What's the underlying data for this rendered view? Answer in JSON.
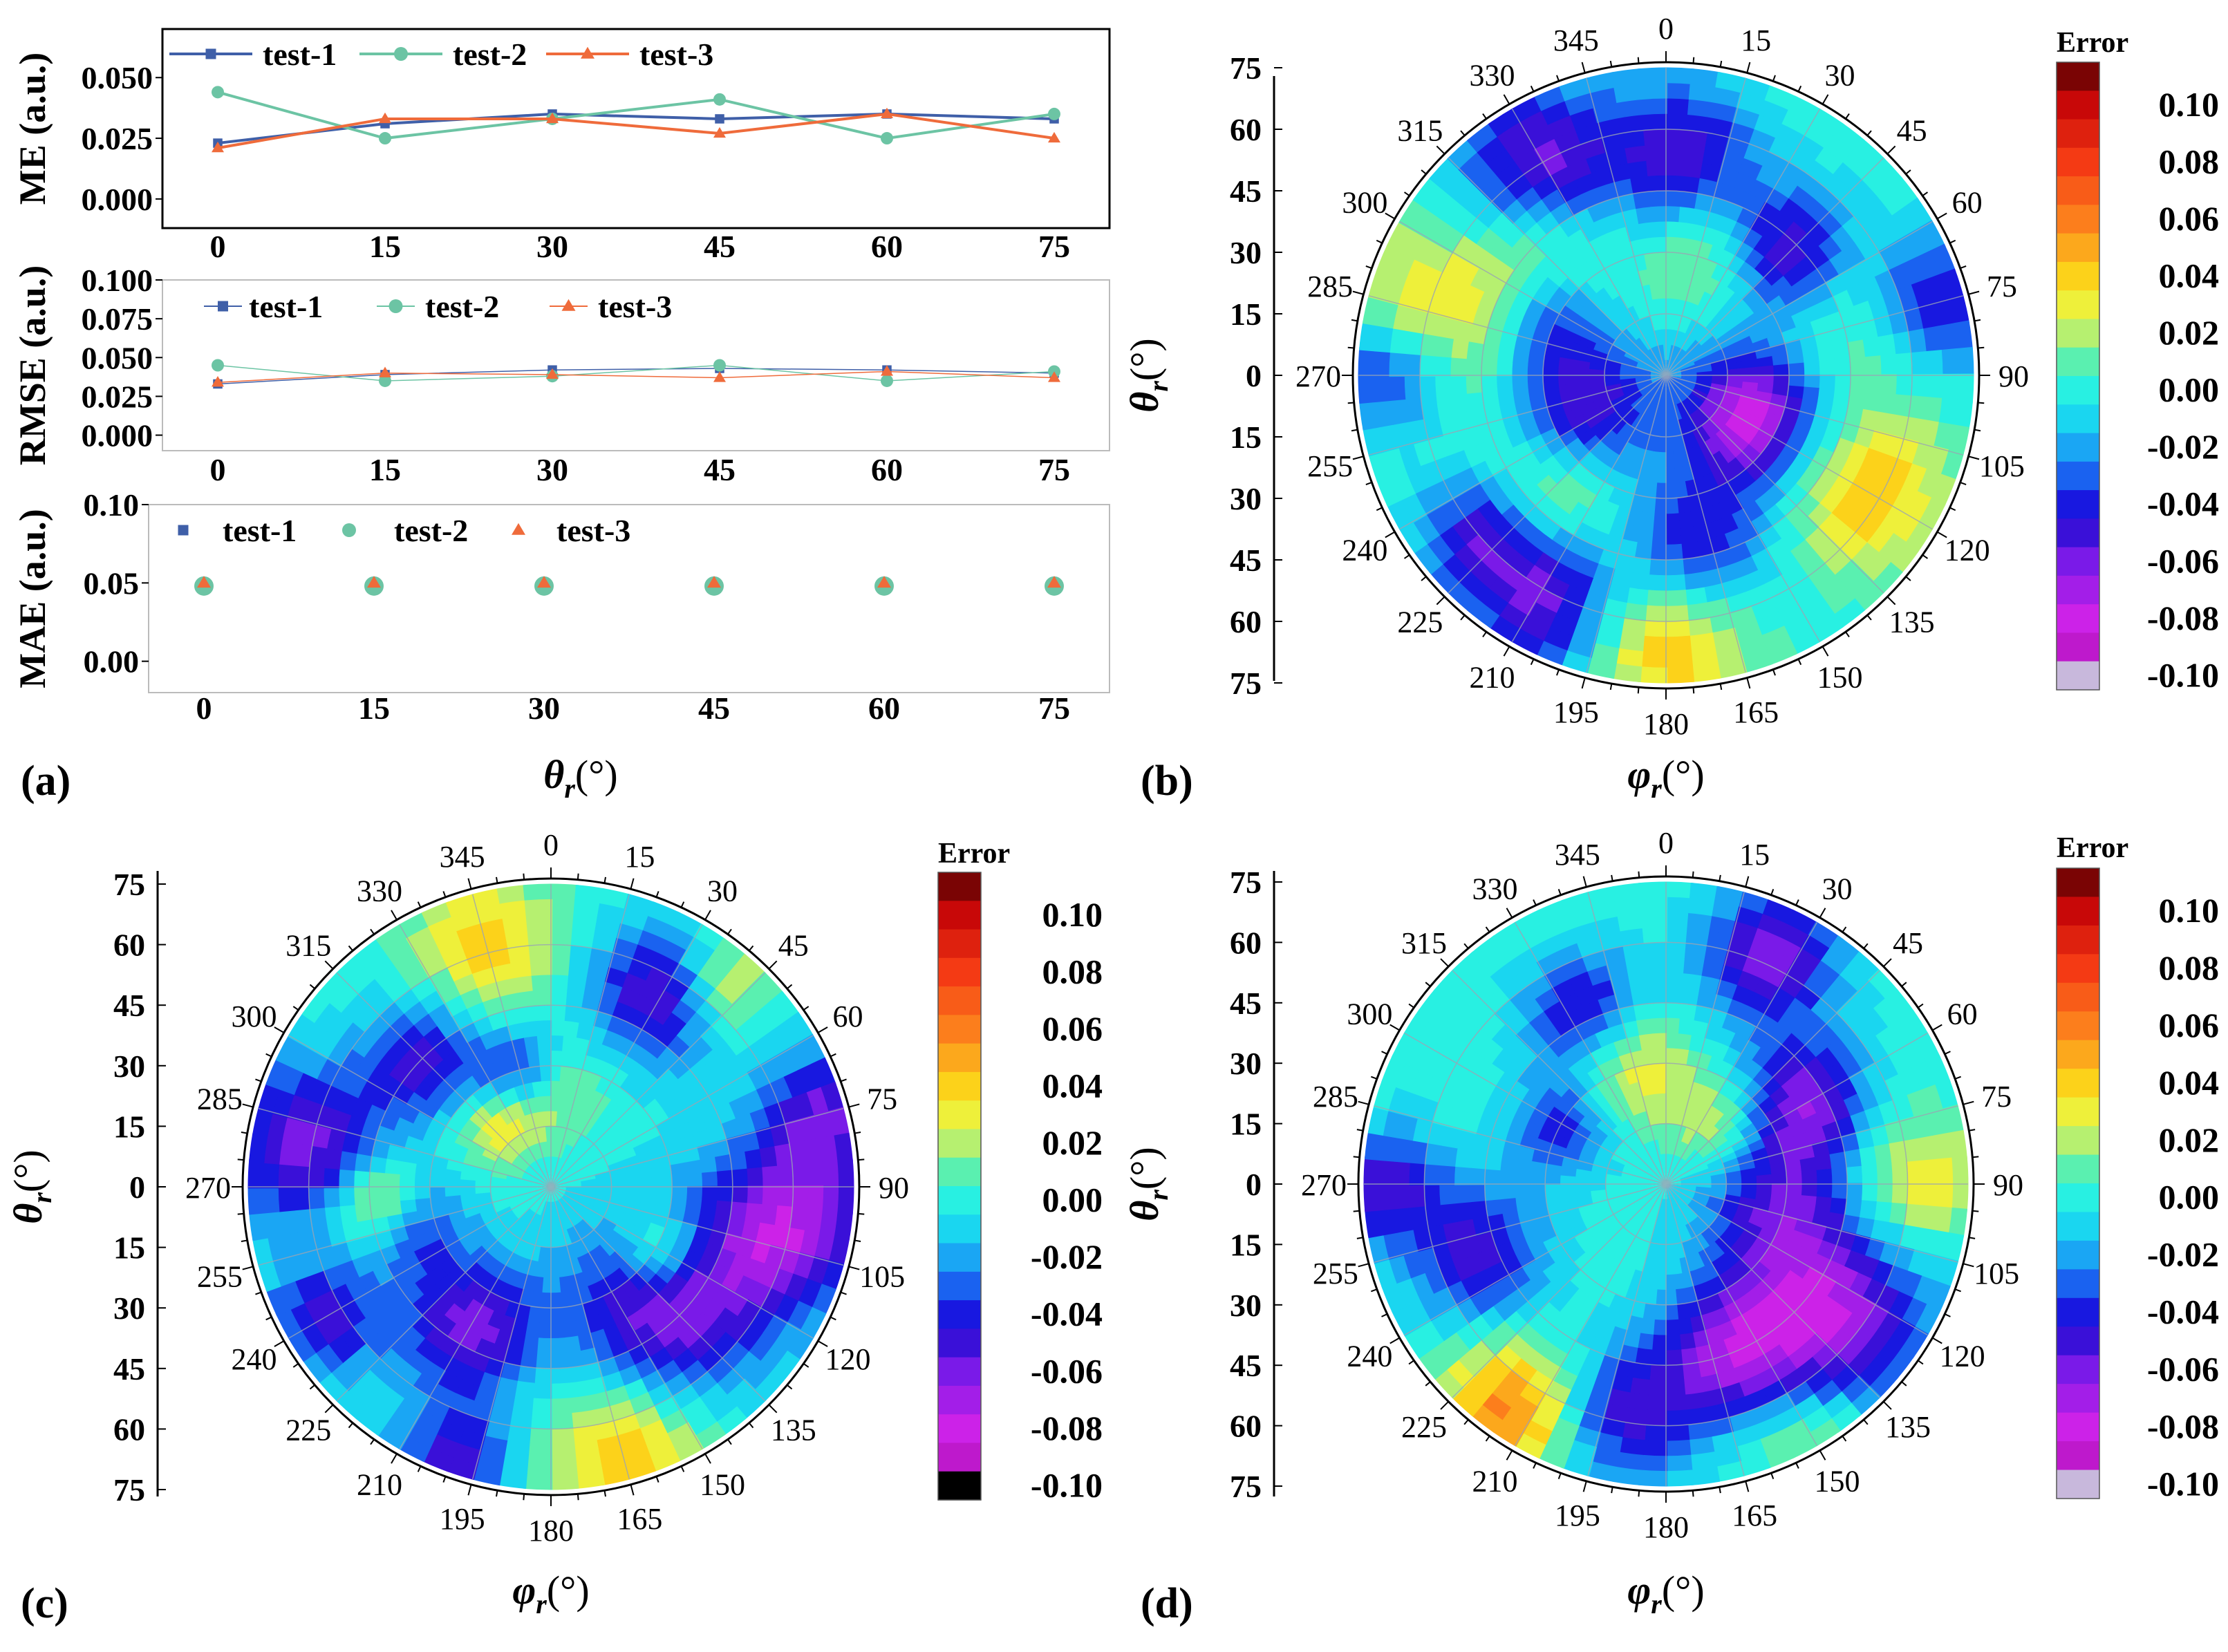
{
  "colors": {
    "test-1": "#3f5fa8",
    "test-2": "#6cc4a4",
    "test-3": "#ef6b3b",
    "grid": "#9aa5b4"
  },
  "panels": {
    "a": {
      "label": "(a)",
      "xlabel_main": "θ",
      "xlabel_sub": "r",
      "xlabel_unit": "(°)"
    },
    "b": {
      "label": "(b)"
    },
    "c": {
      "label": "(c)"
    },
    "d": {
      "label": "(d)"
    }
  },
  "polar_common": {
    "xlabel_main": "φ",
    "xlabel_sub": "r",
    "xlabel_unit": "(°)",
    "ylabel_main": "θ",
    "ylabel_sub": "r",
    "ylabel_unit": "(°)",
    "theta_ticks": [
      "75",
      "60",
      "45",
      "30",
      "15",
      "0",
      "15",
      "30",
      "45",
      "60",
      "75"
    ],
    "phi_ticks": [
      "0",
      "15",
      "30",
      "45",
      "60",
      "75",
      "90",
      "105",
      "120",
      "135",
      "150",
      "165",
      "180",
      "195",
      "210",
      "225",
      "240",
      "255",
      "270",
      "285",
      "300",
      "315",
      "330",
      "345"
    ],
    "colorbar_title": "Error",
    "colorbar_ticks": [
      "0.10",
      "0.08",
      "0.06",
      "0.04",
      "0.02",
      "0.00",
      "-0.02",
      "-0.04",
      "-0.06",
      "-0.08",
      "-0.10"
    ]
  },
  "chart_data": [
    {
      "panel": "a-top",
      "type": "line",
      "x": [
        0,
        15,
        30,
        45,
        60,
        75
      ],
      "xticklabels": [
        "0",
        "15",
        "30",
        "45",
        "60",
        "75"
      ],
      "ylabel": "ME (a.u.)",
      "ylim": [
        -0.012,
        0.07
      ],
      "yticks": [
        0.0,
        0.025,
        0.05
      ],
      "yticklabels": [
        "0.000",
        "0.025",
        "0.050"
      ],
      "series": [
        {
          "name": "test-1",
          "marker": "square",
          "values": [
            0.023,
            0.031,
            0.035,
            0.033,
            0.035,
            0.033
          ]
        },
        {
          "name": "test-2",
          "marker": "circle",
          "values": [
            0.044,
            0.025,
            0.033,
            0.041,
            0.025,
            0.035
          ]
        },
        {
          "name": "test-3",
          "marker": "triangle",
          "values": [
            0.021,
            0.033,
            0.033,
            0.027,
            0.035,
            0.025
          ]
        }
      ]
    },
    {
      "panel": "a-middle",
      "type": "scatter",
      "x": [
        0,
        15,
        30,
        45,
        60,
        75
      ],
      "xticklabels": [
        "0",
        "15",
        "30",
        "45",
        "60",
        "75"
      ],
      "ylabel": "RMSE (a.u.)",
      "ylim": [
        -0.01,
        0.1
      ],
      "yticks": [
        0.0,
        0.025,
        0.05,
        0.075,
        0.1
      ],
      "yticklabels": [
        "0.000",
        "0.025",
        "0.050",
        "0.075",
        "0.100"
      ],
      "series": [
        {
          "name": "test-1",
          "marker": "square",
          "values": [
            0.033,
            0.039,
            0.042,
            0.043,
            0.042,
            0.04
          ]
        },
        {
          "name": "test-2",
          "marker": "circle",
          "values": [
            0.045,
            0.035,
            0.038,
            0.045,
            0.035,
            0.041
          ]
        },
        {
          "name": "test-3",
          "marker": "triangle",
          "values": [
            0.034,
            0.04,
            0.039,
            0.037,
            0.041,
            0.037
          ]
        }
      ]
    },
    {
      "panel": "a-bottom",
      "type": "scatter",
      "x": [
        0,
        15,
        30,
        45,
        60,
        75
      ],
      "xticklabels": [
        "0",
        "15",
        "30",
        "45",
        "60",
        "75"
      ],
      "ylabel": "MAE (a.u.)",
      "ylim": [
        -0.02,
        0.1
      ],
      "yticks": [
        0.0,
        0.05,
        0.1
      ],
      "yticklabels": [
        "0.00",
        "0.05",
        "0.10"
      ],
      "series": [
        {
          "name": "test-1",
          "marker": "square",
          "values": [
            0.049,
            0.049,
            0.049,
            0.049,
            0.049,
            0.049
          ]
        },
        {
          "name": "test-2",
          "marker": "circle",
          "values": [
            0.048,
            0.048,
            0.048,
            0.048,
            0.048,
            0.048
          ]
        },
        {
          "name": "test-3",
          "marker": "triangle",
          "values": [
            0.05,
            0.05,
            0.05,
            0.05,
            0.05,
            0.05
          ]
        }
      ]
    },
    {
      "panel": "b",
      "type": "heatmap",
      "zlim": [
        -0.1,
        0.1
      ],
      "colorbar_extra": "#c8b8dc",
      "blobs": [
        {
          "phi": 330,
          "theta": 60,
          "sigma": 14,
          "amp": -0.06
        },
        {
          "phi": 5,
          "theta": 55,
          "sigma": 12,
          "amp": -0.05
        },
        {
          "phi": 45,
          "theta": 42,
          "sigma": 11,
          "amp": -0.06
        },
        {
          "phi": 75,
          "theta": 68,
          "sigma": 12,
          "amp": -0.05
        },
        {
          "phi": 100,
          "theta": 30,
          "sigma": 16,
          "amp": -0.06
        },
        {
          "phi": 270,
          "theta": 68,
          "sigma": 10,
          "amp": -0.05
        },
        {
          "phi": 250,
          "theta": 22,
          "sigma": 12,
          "amp": -0.06
        },
        {
          "phi": 230,
          "theta": 60,
          "sigma": 10,
          "amp": -0.05
        },
        {
          "phi": 208,
          "theta": 62,
          "sigma": 12,
          "amp": -0.06
        },
        {
          "phi": 170,
          "theta": 42,
          "sigma": 12,
          "amp": -0.05
        },
        {
          "phi": 120,
          "theta": 22,
          "sigma": 10,
          "amp": -0.05
        },
        {
          "phi": 300,
          "theta": 32,
          "sigma": 9,
          "amp": -0.04
        },
        {
          "phi": 80,
          "theta": 40,
          "sigma": 16,
          "amp": 0.045
        },
        {
          "phi": 120,
          "theta": 55,
          "sigma": 14,
          "amp": 0.05
        },
        {
          "phi": 285,
          "theta": 60,
          "sigma": 16,
          "amp": 0.035
        },
        {
          "phi": 180,
          "theta": 65,
          "sigma": 14,
          "amp": 0.045
        },
        {
          "phi": 225,
          "theta": 38,
          "sigma": 12,
          "amp": 0.03
        },
        {
          "phi": 315,
          "theta": 40,
          "sigma": 12,
          "amp": 0.03
        },
        {
          "phi": 20,
          "theta": 30,
          "sigma": 10,
          "amp": 0.025
        }
      ]
    },
    {
      "panel": "c",
      "type": "heatmap",
      "zlim": [
        -0.1,
        0.1
      ],
      "colorbar_extra": "#000000",
      "blobs": [
        {
          "phi": 280,
          "theta": 62,
          "sigma": 14,
          "amp": -0.06
        },
        {
          "phi": 315,
          "theta": 45,
          "sigma": 10,
          "amp": -0.05
        },
        {
          "phi": 345,
          "theta": 30,
          "sigma": 8,
          "amp": -0.05
        },
        {
          "phi": 30,
          "theta": 55,
          "sigma": 12,
          "amp": -0.06
        },
        {
          "phi": 75,
          "theta": 70,
          "sigma": 11,
          "amp": -0.05
        },
        {
          "phi": 100,
          "theta": 60,
          "sigma": 15,
          "amp": -0.07
        },
        {
          "phi": 135,
          "theta": 40,
          "sigma": 16,
          "amp": -0.07
        },
        {
          "phi": 210,
          "theta": 40,
          "sigma": 12,
          "amp": -0.06
        },
        {
          "phi": 240,
          "theta": 65,
          "sigma": 10,
          "amp": -0.05
        },
        {
          "phi": 200,
          "theta": 72,
          "sigma": 10,
          "amp": -0.05
        },
        {
          "phi": 255,
          "theta": 35,
          "sigma": 9,
          "amp": -0.04
        },
        {
          "phi": 165,
          "theta": 70,
          "sigma": 14,
          "amp": 0.045
        },
        {
          "phi": 345,
          "theta": 62,
          "sigma": 12,
          "amp": 0.04
        },
        {
          "phi": 265,
          "theta": 42,
          "sigma": 8,
          "amp": 0.05
        },
        {
          "phi": 120,
          "theta": 32,
          "sigma": 8,
          "amp": 0.05
        },
        {
          "phi": 40,
          "theta": 65,
          "sigma": 9,
          "amp": 0.04
        },
        {
          "phi": 0,
          "theta": 25,
          "sigma": 9,
          "amp": 0.03
        },
        {
          "phi": 320,
          "theta": 20,
          "sigma": 7,
          "amp": 0.035
        }
      ]
    },
    {
      "panel": "d",
      "type": "heatmap",
      "zlim": [
        -0.1,
        0.1
      ],
      "colorbar_extra": "#c8b8dc",
      "blobs": [
        {
          "phi": 25,
          "theta": 62,
          "sigma": 12,
          "amp": -0.06
        },
        {
          "phi": 335,
          "theta": 48,
          "sigma": 10,
          "amp": -0.05
        },
        {
          "phi": 60,
          "theta": 40,
          "sigma": 11,
          "amp": -0.06
        },
        {
          "phi": 105,
          "theta": 30,
          "sigma": 14,
          "amp": -0.05
        },
        {
          "phi": 130,
          "theta": 55,
          "sigma": 16,
          "amp": -0.07
        },
        {
          "phi": 160,
          "theta": 45,
          "sigma": 12,
          "amp": -0.06
        },
        {
          "phi": 190,
          "theta": 58,
          "sigma": 12,
          "amp": -0.05
        },
        {
          "phi": 250,
          "theta": 50,
          "sigma": 12,
          "amp": -0.05
        },
        {
          "phi": 270,
          "theta": 70,
          "sigma": 10,
          "amp": -0.05
        },
        {
          "phi": 300,
          "theta": 30,
          "sigma": 9,
          "amp": -0.04
        },
        {
          "phi": 215,
          "theta": 68,
          "sigma": 12,
          "amp": 0.06
        },
        {
          "phi": 90,
          "theta": 62,
          "sigma": 12,
          "amp": 0.035
        },
        {
          "phi": 345,
          "theta": 30,
          "sigma": 10,
          "amp": 0.035
        },
        {
          "phi": 150,
          "theta": 72,
          "sigma": 12,
          "amp": 0.03
        },
        {
          "phi": 40,
          "theta": 20,
          "sigma": 8,
          "amp": 0.03
        }
      ]
    }
  ],
  "figure_layout_note": "four panels"
}
